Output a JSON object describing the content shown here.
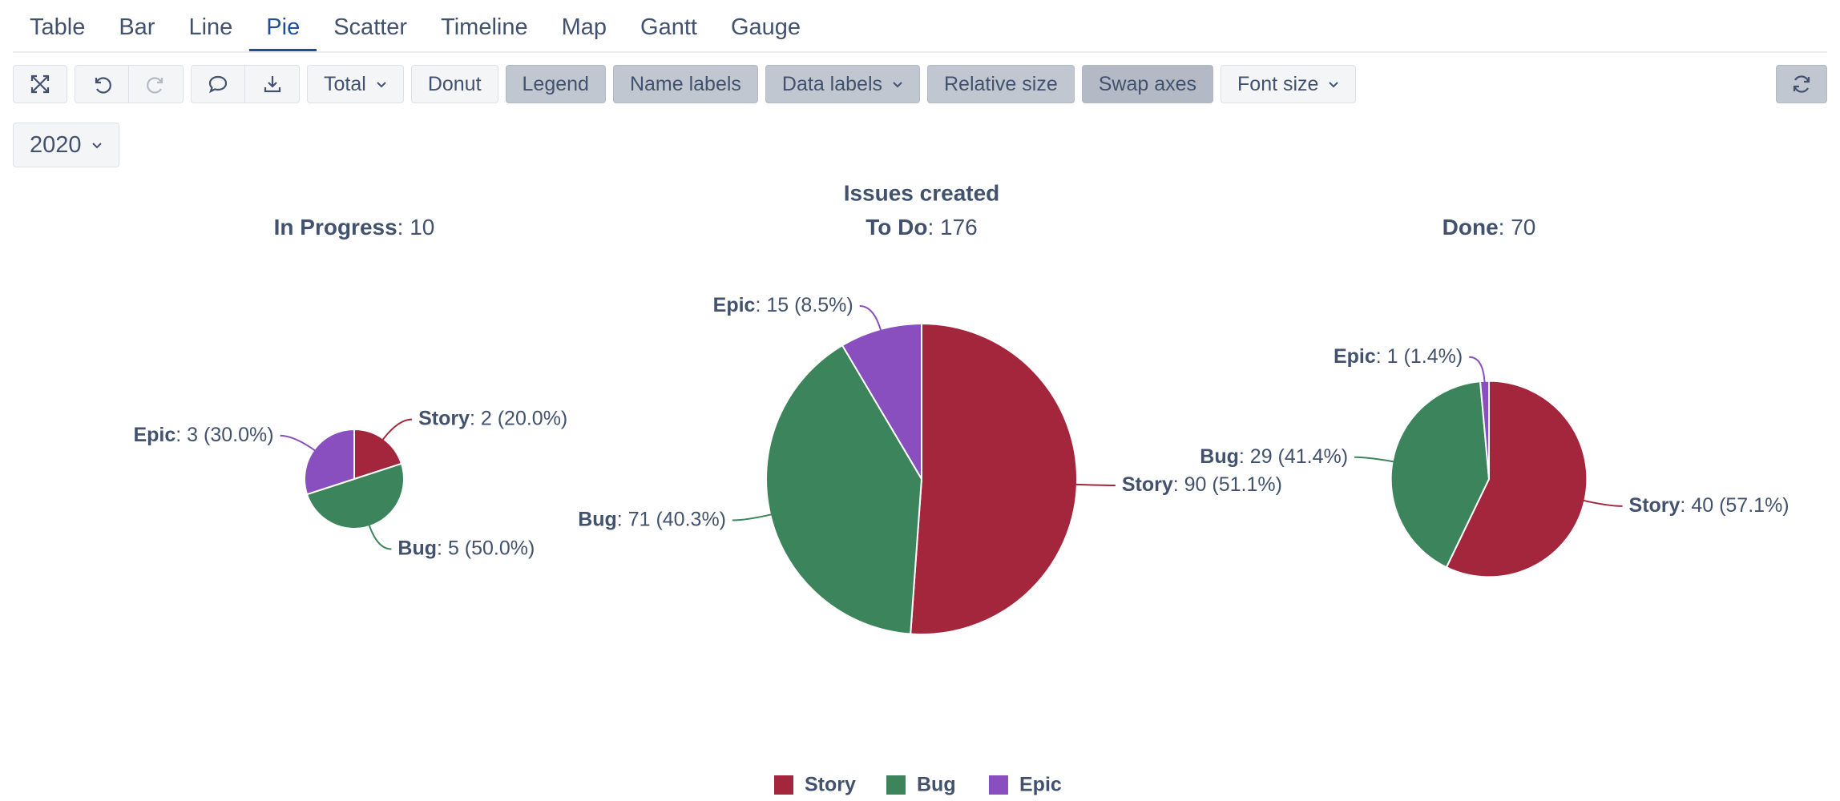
{
  "tabs": [
    "Table",
    "Bar",
    "Line",
    "Pie",
    "Scatter",
    "Timeline",
    "Map",
    "Gantt",
    "Gauge"
  ],
  "toolbar": {
    "buttons": [
      "Total",
      "Donut",
      "Legend",
      "Name labels",
      "Data labels",
      "Relative size",
      "Swap axes",
      "Font size"
    ]
  },
  "year": "2020",
  "chart_data": {
    "type": "pie",
    "title": "Issues created",
    "categories": [
      "Story",
      "Bug",
      "Epic"
    ],
    "colors": [
      "#a4263c",
      "#3c845c",
      "#8a4fbe"
    ],
    "legend": "bottom",
    "pies": [
      {
        "name": "In Progress",
        "total": 10,
        "values": [
          2,
          5,
          3
        ],
        "value_labels": [
          "2 (20.0%)",
          "5 (50.0%)",
          "3 (30.0%)"
        ]
      },
      {
        "name": "To Do",
        "total": 176,
        "values": [
          90,
          71,
          15
        ],
        "value_labels": [
          "90 (51.1%)",
          "71 (40.3%)",
          "15 (8.5%)"
        ]
      },
      {
        "name": "Done",
        "total": 70,
        "values": [
          40,
          29,
          1
        ],
        "value_labels": [
          "40 (57.1%)",
          "29 (41.4%)",
          "1 (1.4%)"
        ]
      }
    ]
  }
}
